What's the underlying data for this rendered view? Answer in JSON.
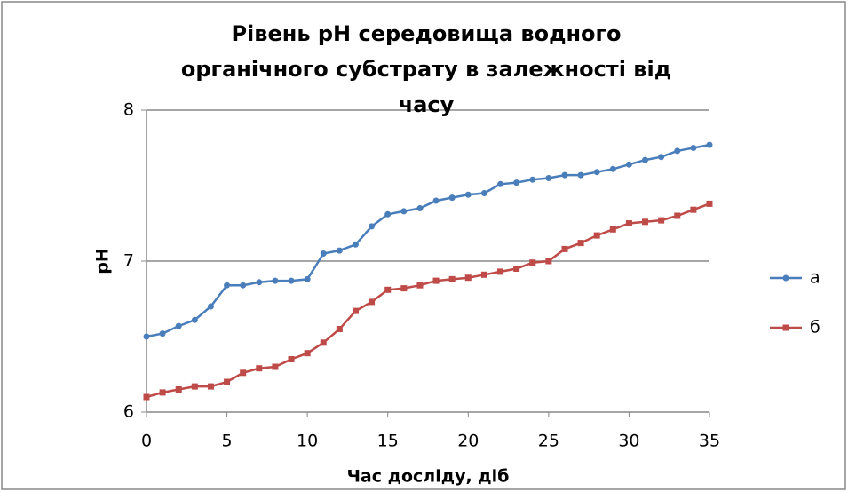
{
  "chart_data": {
    "type": "line",
    "title": "Рівень pH середовища водного органічного субстрату в залежності від часу",
    "xlabel": "Час досліду, діб",
    "ylabel": "pH",
    "x": [
      0,
      1,
      2,
      3,
      4,
      5,
      6,
      7,
      8,
      9,
      10,
      11,
      12,
      13,
      14,
      15,
      16,
      17,
      18,
      19,
      20,
      21,
      22,
      23,
      24,
      25,
      26,
      27,
      28,
      29,
      30,
      31,
      32,
      33,
      34,
      35
    ],
    "series": [
      {
        "name": "а",
        "color": "#4a7ebb",
        "marker": "circle",
        "values": [
          6.5,
          6.52,
          6.57,
          6.61,
          6.7,
          6.84,
          6.84,
          6.86,
          6.87,
          6.87,
          6.88,
          7.05,
          7.07,
          7.11,
          7.23,
          7.31,
          7.33,
          7.35,
          7.4,
          7.42,
          7.44,
          7.45,
          7.51,
          7.52,
          7.54,
          7.55,
          7.57,
          7.57,
          7.59,
          7.61,
          7.64,
          7.67,
          7.69,
          7.73,
          7.75,
          7.77
        ]
      },
      {
        "name": "б",
        "color": "#be4b48",
        "marker": "square",
        "values": [
          6.1,
          6.13,
          6.15,
          6.17,
          6.17,
          6.2,
          6.26,
          6.29,
          6.3,
          6.35,
          6.39,
          6.46,
          6.55,
          6.67,
          6.73,
          6.81,
          6.82,
          6.84,
          6.87,
          6.88,
          6.89,
          6.91,
          6.93,
          6.95,
          6.99,
          7.0,
          7.08,
          7.12,
          7.17,
          7.21,
          7.25,
          7.26,
          7.27,
          7.3,
          7.34,
          7.38
        ]
      }
    ],
    "xlim": [
      0,
      35
    ],
    "xticks": [
      0,
      5,
      10,
      15,
      20,
      25,
      30,
      35
    ],
    "ylim": [
      6,
      8
    ],
    "yticks": [
      6,
      7,
      8
    ],
    "grid": true,
    "legend": "right"
  }
}
